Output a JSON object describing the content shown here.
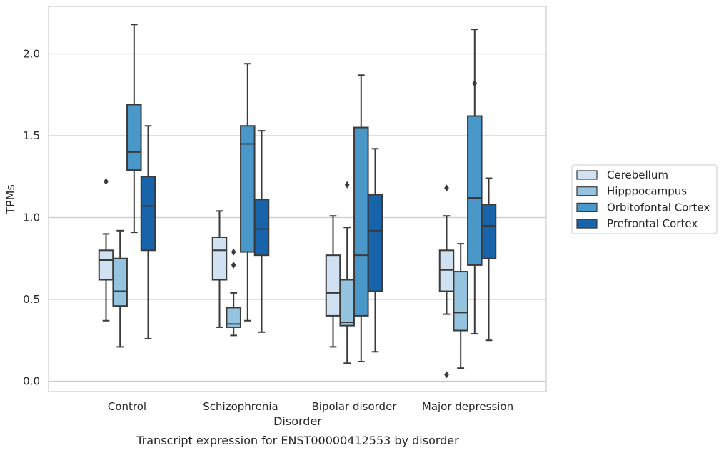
{
  "chart_data": {
    "type": "box",
    "xlabel": "Disorder",
    "ylabel": "TPMs",
    "caption": "Transcript expression for ENST00000412553 by disorder",
    "ylim": [
      -0.06,
      2.28
    ],
    "yticks": [
      0.0,
      0.5,
      1.0,
      1.5,
      2.0
    ],
    "ytick_labels": [
      "0.0",
      "0.5",
      "1.0",
      "1.5",
      "2.0"
    ],
    "grid": "horizontal",
    "legend_position": "right",
    "categories": [
      "Control",
      "Schizophrenia",
      "Bipolar disorder",
      "Major depression"
    ],
    "series": [
      {
        "name": "Cerebellum",
        "color": "#d0e1f2",
        "boxes": [
          {
            "whislo": 0.37,
            "q1": 0.62,
            "med": 0.74,
            "q3": 0.8,
            "whishi": 0.9,
            "fliers": [
              1.22
            ]
          },
          {
            "whislo": 0.33,
            "q1": 0.62,
            "med": 0.8,
            "q3": 0.88,
            "whishi": 1.04,
            "fliers": []
          },
          {
            "whislo": 0.21,
            "q1": 0.4,
            "med": 0.54,
            "q3": 0.77,
            "whishi": 1.01,
            "fliers": []
          },
          {
            "whislo": 0.41,
            "q1": 0.55,
            "med": 0.68,
            "q3": 0.8,
            "whishi": 1.01,
            "fliers": [
              1.18,
              0.04
            ]
          }
        ]
      },
      {
        "name": "Hipppocampus",
        "color": "#94c4df",
        "boxes": [
          {
            "whislo": 0.21,
            "q1": 0.46,
            "med": 0.55,
            "q3": 0.75,
            "whishi": 0.92,
            "fliers": []
          },
          {
            "whislo": 0.28,
            "q1": 0.33,
            "med": 0.35,
            "q3": 0.45,
            "whishi": 0.54,
            "fliers": [
              0.79,
              0.71
            ]
          },
          {
            "whislo": 0.11,
            "q1": 0.34,
            "med": 0.36,
            "q3": 0.62,
            "whishi": 0.94,
            "fliers": [
              1.2
            ]
          },
          {
            "whislo": 0.08,
            "q1": 0.31,
            "med": 0.42,
            "q3": 0.67,
            "whishi": 0.84,
            "fliers": []
          }
        ]
      },
      {
        "name": "Orbitofontal Cortex",
        "color": "#4a98c9",
        "boxes": [
          {
            "whislo": 0.91,
            "q1": 1.29,
            "med": 1.4,
            "q3": 1.69,
            "whishi": 2.18,
            "fliers": []
          },
          {
            "whislo": 0.37,
            "q1": 0.79,
            "med": 1.45,
            "q3": 1.56,
            "whishi": 1.94,
            "fliers": []
          },
          {
            "whislo": 0.12,
            "q1": 0.4,
            "med": 0.77,
            "q3": 1.55,
            "whishi": 1.87,
            "fliers": []
          },
          {
            "whislo": 0.29,
            "q1": 0.71,
            "med": 1.12,
            "q3": 1.62,
            "whishi": 2.15,
            "fliers": [
              1.82
            ]
          }
        ]
      },
      {
        "name": "Prefrontal Cortex",
        "color": "#1764ab",
        "boxes": [
          {
            "whislo": 0.26,
            "q1": 0.8,
            "med": 1.07,
            "q3": 1.25,
            "whishi": 1.56,
            "fliers": []
          },
          {
            "whislo": 0.3,
            "q1": 0.77,
            "med": 0.93,
            "q3": 1.11,
            "whishi": 1.53,
            "fliers": []
          },
          {
            "whislo": 0.18,
            "q1": 0.55,
            "med": 0.92,
            "q3": 1.14,
            "whishi": 1.42,
            "fliers": []
          },
          {
            "whislo": 0.25,
            "q1": 0.75,
            "med": 0.95,
            "q3": 1.08,
            "whishi": 1.24,
            "fliers": []
          }
        ]
      }
    ]
  }
}
